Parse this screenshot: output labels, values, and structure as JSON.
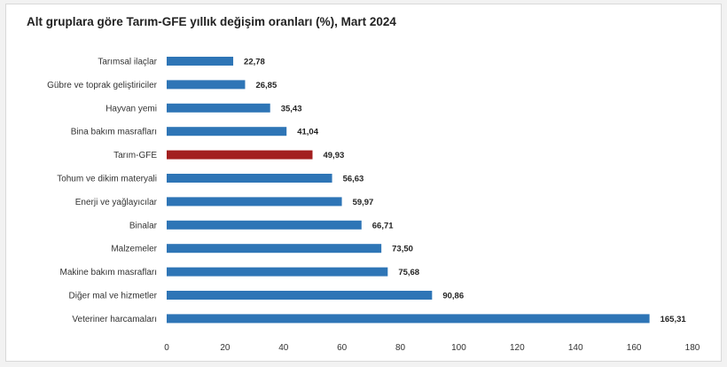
{
  "chart_data": {
    "type": "bar",
    "orientation": "horizontal",
    "title": "Alt gruplara göre Tarım-GFE yıllık değişim oranları (%), Mart 2024",
    "categories": [
      "Tarımsal ilaçlar",
      "Gübre ve toprak geliştiriciler",
      "Hayvan yemi",
      "Bina bakım masrafları",
      "Tarım-GFE",
      "Tohum ve dikim materyali",
      "Enerji  ve yağlayıcılar",
      "Binalar",
      "Malzemeler",
      "Makine bakım masrafları",
      "Diğer mal ve hizmetler",
      "Veteriner harcamaları"
    ],
    "values": [
      22.78,
      26.85,
      35.43,
      41.04,
      49.93,
      56.63,
      59.97,
      66.71,
      73.5,
      75.68,
      90.86,
      165.31
    ],
    "value_labels": [
      "22,78",
      "26,85",
      "35,43",
      "41,04",
      "49,93",
      "56,63",
      "59,97",
      "66,71",
      "73,50",
      "75,68",
      "90,86",
      "165,31"
    ],
    "highlight_category": "Tarım-GFE",
    "xlim": [
      0,
      180
    ],
    "xticks": [
      0,
      20,
      40,
      60,
      80,
      100,
      120,
      140,
      160,
      180
    ],
    "xlabel": "",
    "ylabel": "",
    "grid": false,
    "legend": "none",
    "colors": {
      "bar": "#2e75b6",
      "highlight": "#a31f1f"
    }
  }
}
